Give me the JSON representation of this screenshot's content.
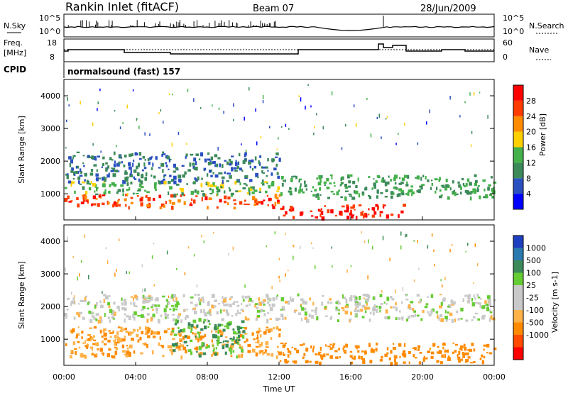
{
  "header": {
    "station": "Rankin Inlet (fitACF)",
    "beam": "Beam 07",
    "date": "28/Jun/2009"
  },
  "strip_panels": {
    "noise": {
      "left_label": "N.Sky",
      "right_label": "N.Search",
      "left_ticks": [
        "10^5",
        "10^0"
      ],
      "right_ticks": [
        "10^5",
        "10^0"
      ]
    },
    "freq": {
      "left_label_line1": "Freq.",
      "left_label_line2": "[MHz]",
      "right_label": "Nave",
      "left_ticks": [
        "18",
        "8"
      ],
      "right_ticks": [
        "60",
        "0"
      ]
    },
    "cpid": {
      "label": "CPID",
      "value": "normalsound (fast) 157"
    }
  },
  "colors": {
    "power_scale": [
      "#0000ff",
      "#2a4fbf",
      "#3c8a5a",
      "#44b14a",
      "#ffd000",
      "#ff8c00",
      "#ff3b00",
      "#ff0000"
    ],
    "velocity_scale": [
      "#ff0000",
      "#ff4a00",
      "#ff8a00",
      "#ffb24a",
      "#c9c9c9",
      "#c9c9c9",
      "#66cc33",
      "#3c8a5a",
      "#2a7ab0",
      "#1e3fbf"
    ]
  },
  "chart_data": [
    {
      "type": "heatmap",
      "title": "Power",
      "xlabel": "",
      "ylabel": "Slant Range [km]",
      "x_ticks": [
        "00:00",
        "04:00",
        "08:00",
        "12:00",
        "16:00",
        "20:00",
        "00:00"
      ],
      "y_ticks": [
        1000,
        2000,
        3000,
        4000
      ],
      "ylim": [
        200,
        4500
      ],
      "colorbar": {
        "label": "Power [dB]",
        "ticks": [
          "4",
          "8",
          "12",
          "16",
          "20",
          "24",
          "28"
        ],
        "range": [
          0,
          32
        ]
      },
      "regions": [
        {
          "from_hour": 0.0,
          "to_hour": 12.0,
          "range_km": [
            600,
            1000
          ],
          "value": 26
        },
        {
          "from_hour": 0.0,
          "to_hour": 12.0,
          "range_km": [
            1000,
            1400
          ],
          "value": 14
        },
        {
          "from_hour": 0.0,
          "to_hour": 12.0,
          "range_km": [
            1400,
            2300
          ],
          "value": 8
        },
        {
          "from_hour": 12.0,
          "to_hour": 19.0,
          "range_km": [
            300,
            700
          ],
          "value": 28
        },
        {
          "from_hour": 12.0,
          "to_hour": 24.0,
          "range_km": [
            900,
            1600
          ],
          "value": 12
        }
      ]
    },
    {
      "type": "heatmap",
      "title": "Velocity",
      "xlabel": "Time UT",
      "ylabel": "Slant Range [km]",
      "x_ticks": [
        "00:00",
        "04:00",
        "08:00",
        "12:00",
        "16:00",
        "20:00",
        "00:00"
      ],
      "y_ticks": [
        1000,
        2000,
        3000,
        4000
      ],
      "ylim": [
        200,
        4500
      ],
      "colorbar": {
        "label": "Velocity [m s-1]",
        "ticks": [
          "1000",
          "500",
          "100",
          "25",
          "-25",
          "-100",
          "-500",
          "-1000"
        ]
      },
      "regions": [
        {
          "from_hour": 0.0,
          "to_hour": 12.0,
          "range_km": [
            500,
            1400
          ],
          "value": -100
        },
        {
          "from_hour": 6.0,
          "to_hour": 10.0,
          "range_km": [
            500,
            1600
          ],
          "value": 100
        },
        {
          "from_hour": 0.0,
          "to_hour": 24.0,
          "range_km": [
            1600,
            2400
          ],
          "value": 0
        },
        {
          "from_hour": 12.0,
          "to_hour": 24.0,
          "range_km": [
            300,
            900
          ],
          "value": -150
        }
      ]
    }
  ]
}
